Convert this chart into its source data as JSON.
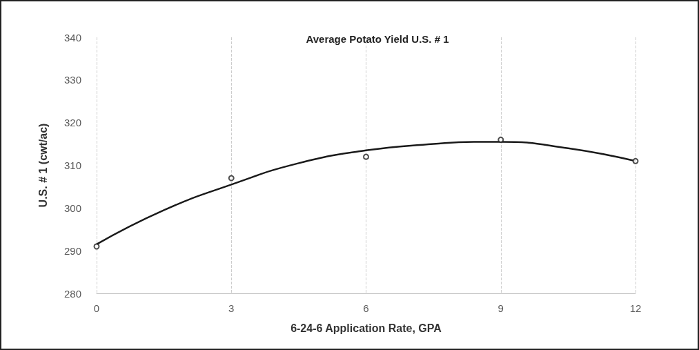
{
  "chart_data": {
    "type": "scatter",
    "title": "Average Potato Yield U.S. # 1",
    "xlabel": "6-24-6 Application Rate, GPA",
    "ylabel": "U.S. # 1 (cwt/ac)",
    "x": [
      0,
      3,
      6,
      9,
      12
    ],
    "series": [
      {
        "color": "#222222",
        "marker": "circle",
        "values": [
          291,
          307,
          312,
          316,
          311
        ]
      },
      {
        "type": "line",
        "color": "#1a1a1a",
        "marker": "none",
        "line_style": "solid",
        "x": [
          0,
          1.5,
          3,
          4.5,
          6,
          7.5,
          8.4,
          9,
          10.5,
          12
        ],
        "values": [
          291.5,
          299.5,
          305.5,
          310.5,
          313.5,
          315,
          315.5,
          315.5,
          314,
          311
        ]
      }
    ],
    "xlim": [
      0,
      12
    ],
    "xticks": [
      0,
      3,
      6,
      9,
      12
    ],
    "ylim": [
      280,
      340
    ],
    "yticks": [
      280,
      290,
      300,
      310,
      320,
      330,
      340
    ],
    "grid": "x"
  }
}
